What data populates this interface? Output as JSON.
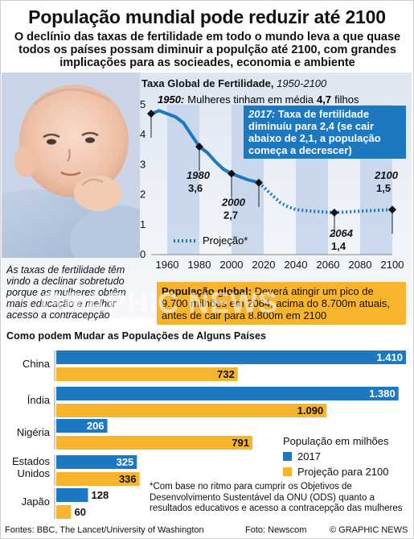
{
  "header": {
    "title": "População mundial pode reduzir até 2100",
    "subtitle": "O declínio das taxas de fertilidade em todo o mundo leva a que quase todos os países possam diminuir a populção até 2100, com grandes implicações para as socieades, economia e ambiente"
  },
  "photo": {
    "caption": "As taxas de fertilidade têm vindo a declinar sobretudo porque as mulheres obtêm mais educação e melhor acesso a contracepção"
  },
  "fertility_chart": {
    "title": "Taxa Global de Fertilidade,",
    "range": "1950-2100",
    "annotation_1950_year": "1950:",
    "annotation_1950_text": "Mulheres tinham em média",
    "annotation_1950_value": "4,7",
    "annotation_1950_unit": "filhos",
    "callout_2017_year": "2017:",
    "callout_2017_text": "Taxa de fertilidade diminuíu para 2,4 (se cair abaixo de 2,1, a população começa a decrescer)",
    "legend_projection": "Projeção*",
    "labels": [
      {
        "year": "1980",
        "value": "3,6"
      },
      {
        "year": "2000",
        "value": "2,7"
      },
      {
        "year": "2064",
        "value": "1,4"
      },
      {
        "year": "2100",
        "value": "1,5"
      }
    ]
  },
  "population_global": {
    "label": "População global:",
    "text": "Deverá atingir um pico de 9.700 milhões em 2064, acima do 8.700m atuais, antes de cair para 8.800m em 2100"
  },
  "countries_chart": {
    "title": "Como podem Mudar as Populações de Alguns Países",
    "legend_title": "População em milhões",
    "legend_2017": "2017",
    "legend_projection": "Projeção para 2100"
  },
  "footnote": "*Com base no ritmo para cumprir os Objetivos de Desenvolvimento Sustentável da ONU (ODS) quanto a resultados educativos e acesso a contracepção das mulheres",
  "footer": {
    "sources": "Fontes: BBC, The Lancet/University of Washington",
    "photo": "Foto: Newscom",
    "copyright": "© GRAPHIC NEWS"
  },
  "colors": {
    "blue": "#1d78c2",
    "orange": "#f7b42c",
    "chart_band": "#c3d3ea",
    "line": "#1d78c2"
  },
  "chart_data": [
    {
      "type": "line",
      "title": "Taxa Global de Fertilidade, 1950-2100",
      "xlim": [
        1950,
        2100
      ],
      "ylim": [
        0,
        5
      ],
      "x_ticks": [
        1960,
        1980,
        2000,
        2020,
        2040,
        2060,
        2080,
        2100
      ],
      "y_ticks": [
        0,
        1,
        2,
        3,
        4,
        5
      ],
      "series": [
        {
          "name": "",
          "x": [
            1950,
            1955,
            1960,
            1965,
            1970,
            1975,
            1980,
            1985,
            1990,
            1995,
            2000,
            2005,
            2010,
            2017
          ],
          "y": [
            4.7,
            4.8,
            4.7,
            4.6,
            4.4,
            4.0,
            3.6,
            3.4,
            3.1,
            2.85,
            2.7,
            2.6,
            2.5,
            2.4
          ]
        },
        {
          "name": "Projeção*",
          "x": [
            2017,
            2025,
            2030,
            2035,
            2040,
            2050,
            2064,
            2080,
            2100
          ],
          "y": [
            2.4,
            2.0,
            1.75,
            1.6,
            1.5,
            1.45,
            1.4,
            1.45,
            1.5
          ]
        }
      ],
      "markers": [
        {
          "x": 1950,
          "y": 4.7
        },
        {
          "x": 1980,
          "y": 3.6
        },
        {
          "x": 2000,
          "y": 2.7
        },
        {
          "x": 2017,
          "y": 2.4
        },
        {
          "x": 2064,
          "y": 1.4
        },
        {
          "x": 2100,
          "y": 1.5
        }
      ]
    },
    {
      "type": "bar",
      "title": "Como podem Mudar as Populações de Alguns Países",
      "orientation": "horizontal",
      "categories": [
        "China",
        "Índia",
        "Nigéria",
        "Estados Unidos",
        "Japão"
      ],
      "series": [
        {
          "name": "2017",
          "values": [
            1410,
            1380,
            206,
            325,
            128
          ],
          "labels": [
            "1.410",
            "1.380",
            "206",
            "325",
            "128"
          ]
        },
        {
          "name": "Projeção para 2100",
          "values": [
            732,
            1090,
            791,
            336,
            60
          ],
          "labels": [
            "732",
            "1.090",
            "791",
            "336",
            "60"
          ]
        }
      ],
      "xlim": [
        0,
        1410
      ]
    }
  ]
}
